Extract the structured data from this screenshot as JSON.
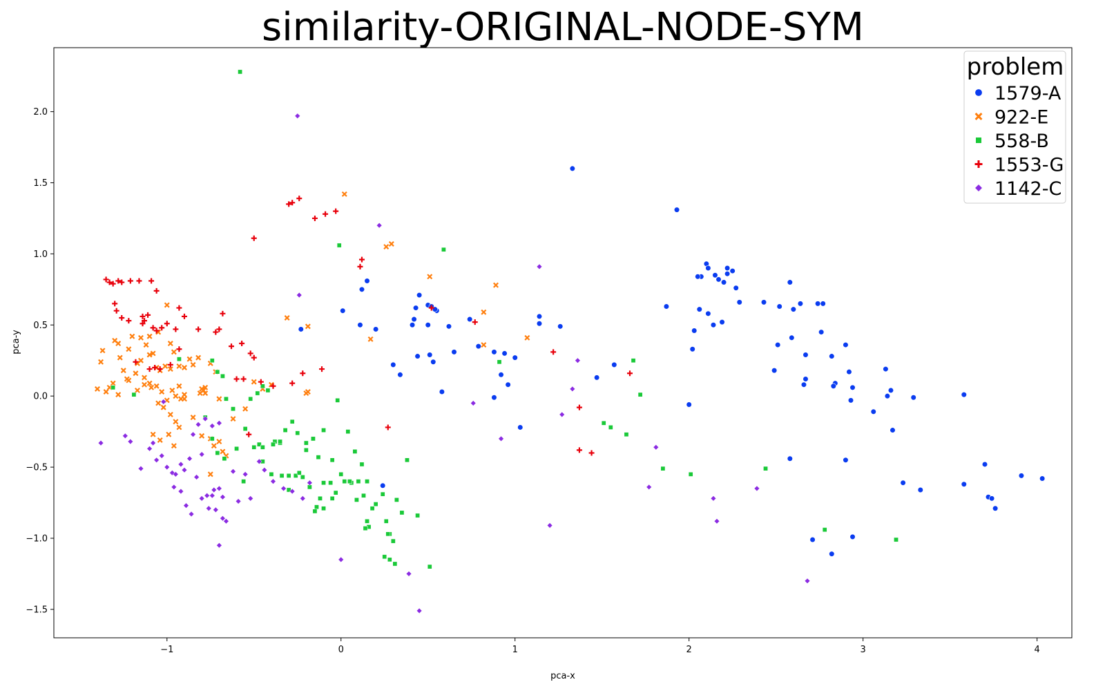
{
  "chart_data": {
    "type": "scatter",
    "title": "similarity-ORIGINAL-NODE-SYM",
    "xlabel": "pca-x",
    "ylabel": "pca-y",
    "xlim": [
      -1.65,
      4.2
    ],
    "ylim": [
      -1.7,
      2.45
    ],
    "xticks": [
      -1,
      0,
      1,
      2,
      3,
      4
    ],
    "yticks": [
      -1.5,
      -1.0,
      -0.5,
      0.0,
      0.5,
      1.0,
      1.5,
      2.0
    ],
    "xtick_labels": [
      "−1",
      "0",
      "1",
      "2",
      "3",
      "4"
    ],
    "ytick_labels": [
      "−1.5",
      "−1.0",
      "−0.5",
      "0.0",
      "0.5",
      "1.0",
      "1.5",
      "2.0"
    ],
    "grid": false,
    "legend": {
      "title": "problem",
      "placement": "top-right"
    },
    "series": [
      {
        "name": "1579-A",
        "marker": "circle",
        "color": "#0a3cf0",
        "x": [
          1.33,
          1.93,
          2.1,
          2.11,
          2.07,
          2.05,
          2.15,
          2.17,
          2.2,
          2.22,
          2.25,
          2.27,
          2.22,
          2.29,
          1.87,
          2.06,
          2.11,
          2.14,
          2.19,
          2.03,
          2.02,
          2.0,
          2.43,
          2.52,
          2.58,
          2.6,
          2.64,
          2.74,
          2.77,
          2.51,
          2.76,
          2.59,
          2.67,
          2.49,
          2.67,
          2.66,
          2.82,
          2.84,
          2.83,
          2.9,
          2.92,
          2.94,
          2.93,
          3.13,
          3.16,
          3.14,
          3.06,
          3.29,
          3.17,
          3.58,
          3.7,
          3.72,
          3.74,
          3.76,
          3.91,
          4.03,
          3.58,
          3.23,
          3.33,
          2.9,
          2.58,
          2.71,
          2.94,
          2.82,
          0.01,
          0.11,
          0.12,
          0.15,
          0.2,
          0.3,
          0.34,
          0.45,
          0.43,
          0.41,
          0.42,
          0.5,
          0.51,
          0.53,
          0.55,
          0.44,
          0.5,
          0.52,
          0.54,
          0.62,
          0.65,
          0.74,
          0.79,
          0.88,
          0.94,
          1.0,
          0.92,
          0.96,
          0.88,
          0.58,
          1.14,
          1.14,
          1.26,
          1.03,
          1.47,
          1.57,
          -0.23,
          0.24
        ],
        "y": [
          1.6,
          1.31,
          0.93,
          0.9,
          0.84,
          0.84,
          0.85,
          0.82,
          0.8,
          0.86,
          0.88,
          0.76,
          0.9,
          0.66,
          0.63,
          0.61,
          0.58,
          0.5,
          0.52,
          0.46,
          0.33,
          -0.06,
          0.66,
          0.63,
          0.8,
          0.61,
          0.65,
          0.65,
          0.65,
          0.36,
          0.45,
          0.41,
          0.29,
          0.18,
          0.12,
          0.08,
          0.28,
          0.09,
          0.07,
          0.36,
          0.17,
          0.06,
          -0.03,
          0.19,
          0.04,
          0.0,
          -0.11,
          -0.01,
          -0.24,
          0.01,
          -0.48,
          -0.71,
          -0.72,
          -0.79,
          -0.56,
          -0.58,
          -0.62,
          -0.61,
          -0.66,
          -0.45,
          -0.44,
          -1.01,
          -0.99,
          -1.11,
          0.6,
          0.5,
          0.75,
          0.81,
          0.47,
          0.22,
          0.15,
          0.71,
          0.62,
          0.5,
          0.54,
          0.64,
          0.29,
          0.24,
          0.6,
          0.28,
          0.5,
          0.63,
          0.61,
          0.49,
          0.31,
          0.54,
          0.35,
          0.31,
          0.3,
          0.27,
          0.15,
          0.08,
          -0.01,
          0.03,
          0.56,
          0.51,
          0.49,
          -0.22,
          0.13,
          0.22,
          0.47,
          -0.63
        ]
      },
      {
        "name": "922-E",
        "marker": "x",
        "color": "#ff7f0e",
        "x": [
          0.02,
          0.29,
          0.26,
          -0.31,
          -0.19,
          0.51,
          0.82,
          0.89,
          0.17,
          1.07,
          0.82,
          -1.37,
          -1.38,
          -1.3,
          -1.28,
          -1.27,
          -1.22,
          -1.2,
          -1.17,
          -1.15,
          -1.12,
          -1.1,
          -1.08,
          -1.05,
          -1.0,
          -0.98,
          -0.96,
          -0.93,
          -0.9,
          -0.87,
          -0.85,
          -0.82,
          -0.8,
          -0.78,
          -0.75,
          -0.72,
          -0.7,
          -1.33,
          -1.31,
          -1.25,
          -1.18,
          -1.13,
          -1.1,
          -1.06,
          -1.03,
          -1.0,
          -0.97,
          -0.95,
          -0.92,
          -0.9,
          -1.22,
          -1.15,
          -1.1,
          -1.06,
          -1.04,
          -1.01,
          -0.98,
          -0.93,
          -0.9,
          -1.4,
          -1.35,
          -1.28,
          -1.23,
          -1.17,
          -1.13,
          -1.09,
          -1.05,
          -1.02,
          -0.98,
          -0.95,
          -1.08,
          -1.04,
          -0.99,
          -0.96,
          -0.93,
          -0.85,
          -0.8,
          -0.75,
          -0.73,
          -0.7,
          -0.68,
          -0.66,
          -0.62,
          -0.55,
          -0.5,
          -0.45,
          -0.4,
          -0.81,
          -0.79,
          -0.78,
          -0.75,
          -0.2,
          -0.19
        ],
        "y": [
          1.42,
          1.07,
          1.05,
          0.55,
          0.49,
          0.84,
          0.59,
          0.78,
          0.4,
          0.41,
          0.36,
          0.32,
          0.24,
          0.39,
          0.37,
          0.27,
          0.33,
          0.42,
          0.23,
          0.41,
          0.36,
          0.42,
          0.3,
          0.45,
          0.64,
          0.37,
          0.31,
          0.21,
          0.2,
          0.26,
          0.22,
          0.27,
          0.05,
          0.02,
          0.23,
          0.17,
          -0.02,
          0.06,
          0.09,
          0.18,
          0.16,
          0.13,
          0.09,
          0.07,
          0.03,
          -0.03,
          0.04,
          0.0,
          -0.02,
          0.01,
          0.11,
          0.25,
          0.29,
          0.2,
          0.18,
          0.21,
          0.19,
          0.07,
          -0.02,
          0.05,
          0.03,
          0.01,
          0.12,
          0.04,
          0.08,
          0.06,
          -0.05,
          -0.08,
          -0.13,
          -0.18,
          -0.27,
          -0.31,
          -0.27,
          -0.35,
          -0.22,
          -0.15,
          -0.28,
          -0.3,
          -0.35,
          -0.32,
          -0.39,
          -0.42,
          -0.16,
          -0.09,
          0.1,
          0.05,
          0.08,
          0.02,
          0.04,
          0.06,
          -0.55,
          0.02,
          0.03
        ]
      },
      {
        "name": "558-B",
        "marker": "square",
        "color": "#1ac938",
        "x": [
          -0.58,
          -0.01,
          0.59,
          0.91,
          1.68,
          1.72,
          1.51,
          1.55,
          1.64,
          1.85,
          2.01,
          2.44,
          2.78,
          3.19,
          0.44,
          0.51,
          -1.31,
          -1.19,
          -0.93,
          -0.74,
          -0.71,
          -0.68,
          -0.66,
          -0.62,
          -0.55,
          -0.52,
          -0.48,
          -0.45,
          -0.42,
          -0.38,
          -0.35,
          -0.32,
          -0.28,
          -0.25,
          -0.2,
          -0.16,
          -0.13,
          -0.1,
          -0.05,
          -0.02,
          0.04,
          0.08,
          0.12,
          0.15,
          -0.78,
          -0.74,
          -0.71,
          -0.67,
          -0.6,
          -0.56,
          -0.5,
          -0.45,
          -0.4,
          -0.34,
          -0.3,
          -0.26,
          -0.22,
          -0.18,
          -0.14,
          -0.12,
          -0.1,
          -0.06,
          -0.03,
          0.02,
          0.06,
          0.09,
          0.13,
          0.16,
          0.2,
          0.24,
          0.26,
          0.28,
          0.3,
          0.32,
          0.35,
          0.38,
          0.14,
          0.15,
          0.27,
          0.28,
          0.25,
          0.31,
          -0.47,
          -0.45,
          -0.39,
          -0.35,
          -0.3,
          -0.24,
          -0.2,
          -0.15,
          -0.1,
          -0.05,
          0.0,
          0.05,
          0.1,
          0.18
        ],
        "y": [
          2.28,
          1.06,
          1.03,
          0.24,
          0.25,
          0.01,
          -0.19,
          -0.22,
          -0.27,
          -0.51,
          -0.55,
          -0.51,
          -0.94,
          -1.01,
          -0.84,
          -1.2,
          0.06,
          0.01,
          0.26,
          0.25,
          0.17,
          0.14,
          -0.02,
          -0.09,
          -0.23,
          -0.02,
          0.02,
          0.07,
          0.04,
          -0.32,
          -0.33,
          -0.24,
          -0.18,
          -0.26,
          -0.33,
          -0.3,
          -0.43,
          -0.24,
          -0.45,
          -0.03,
          -0.25,
          -0.39,
          -0.48,
          -0.6,
          -0.15,
          -0.3,
          -0.4,
          -0.44,
          -0.37,
          -0.6,
          -0.36,
          -0.46,
          -0.55,
          -0.56,
          -0.66,
          -0.56,
          -0.57,
          -0.64,
          -0.78,
          -0.72,
          -0.61,
          -0.61,
          -0.68,
          -0.6,
          -0.61,
          -0.73,
          -0.7,
          -0.92,
          -0.76,
          -0.69,
          -0.88,
          -0.97,
          -1.02,
          -0.73,
          -0.82,
          -0.45,
          -0.93,
          -0.88,
          -0.97,
          -1.15,
          -1.13,
          -1.18,
          -0.34,
          -0.36,
          -0.34,
          -0.32,
          -0.56,
          -0.54,
          -0.38,
          -0.81,
          -0.79,
          -0.72,
          -0.55,
          -0.6,
          -0.6,
          -0.79
        ]
      },
      {
        "name": "1553-G",
        "marker": "plus",
        "color": "#e8000b",
        "x": [
          -0.28,
          -0.24,
          -0.3,
          -0.15,
          -0.09,
          -0.03,
          -0.5,
          0.12,
          0.11,
          0.52,
          0.77,
          1.22,
          1.37,
          1.44,
          1.37,
          1.66,
          0.27,
          -1.35,
          -1.33,
          -1.31,
          -1.28,
          -1.26,
          -1.21,
          -1.16,
          -1.14,
          -1.3,
          -1.29,
          -1.26,
          -1.22,
          -1.18,
          -1.13,
          -1.11,
          -1.08,
          -1.06,
          -1.03,
          -1.0,
          -0.95,
          -0.93,
          -0.9,
          -0.82,
          -0.72,
          -0.7,
          -0.68,
          -0.63,
          -0.57,
          -0.52,
          -0.5,
          -0.46,
          -0.39,
          -0.28,
          -0.22,
          -0.11,
          -1.14,
          -1.1,
          -1.07,
          -1.04,
          -0.98,
          -0.93,
          -1.06,
          -1.09,
          -0.53,
          -0.6,
          -0.56
        ],
        "y": [
          1.36,
          1.39,
          1.35,
          1.25,
          1.28,
          1.3,
          1.11,
          0.96,
          0.91,
          0.62,
          0.52,
          0.31,
          -0.08,
          -0.4,
          -0.38,
          0.16,
          -0.22,
          0.82,
          0.8,
          0.79,
          0.81,
          0.8,
          0.81,
          0.81,
          0.56,
          0.65,
          0.6,
          0.55,
          0.53,
          0.24,
          0.53,
          0.57,
          0.48,
          0.46,
          0.48,
          0.51,
          0.47,
          0.62,
          0.56,
          0.47,
          0.45,
          0.47,
          0.58,
          0.35,
          0.37,
          0.3,
          0.27,
          0.1,
          0.07,
          0.09,
          0.16,
          0.19,
          0.51,
          0.19,
          0.2,
          0.19,
          0.22,
          0.33,
          0.74,
          0.81,
          -0.27,
          0.12,
          0.12
        ]
      },
      {
        "name": "1142-C",
        "marker": "diamond",
        "color": "#8b2be2",
        "x": [
          -0.25,
          0.22,
          -0.24,
          1.14,
          1.36,
          1.33,
          1.27,
          0.92,
          1.2,
          1.77,
          1.81,
          2.14,
          2.16,
          2.39,
          2.68,
          0.0,
          0.39,
          0.45,
          0.76,
          -1.38,
          -1.24,
          -1.21,
          -1.15,
          -1.1,
          -1.06,
          -1.03,
          -1.0,
          -0.97,
          -0.95,
          -0.92,
          -0.9,
          -0.87,
          -0.83,
          -0.8,
          -0.77,
          -0.73,
          -0.7,
          -0.68,
          -0.66,
          -0.62,
          -0.59,
          -0.55,
          -0.52,
          -0.47,
          -0.44,
          -0.39,
          -0.33,
          -0.28,
          -0.22,
          -0.18,
          -0.85,
          -0.82,
          -0.78,
          -0.74,
          -0.7,
          -1.08,
          -1.02,
          -0.96,
          -0.92,
          -0.89,
          -0.86,
          -0.8,
          -0.76,
          -0.72,
          -0.68,
          -0.7,
          -0.74
        ],
        "y": [
          1.97,
          1.2,
          0.71,
          0.91,
          0.25,
          0.05,
          -0.13,
          -0.3,
          -0.91,
          -0.64,
          -0.36,
          -0.72,
          -0.88,
          -0.65,
          -1.3,
          -1.15,
          -1.25,
          -1.51,
          -0.05,
          -0.33,
          -0.28,
          -0.32,
          -0.51,
          -0.37,
          -0.45,
          -0.42,
          -0.5,
          -0.54,
          -0.55,
          -0.48,
          -0.52,
          -0.44,
          -0.57,
          -0.41,
          -0.7,
          -0.66,
          -0.65,
          -0.71,
          -0.88,
          -0.53,
          -0.74,
          -0.55,
          -0.72,
          -0.46,
          -0.52,
          -0.6,
          -0.65,
          -0.67,
          -0.72,
          -0.61,
          -0.27,
          -0.2,
          -0.16,
          -0.21,
          -0.19,
          -0.33,
          -0.04,
          -0.64,
          -0.67,
          -0.77,
          -0.83,
          -0.72,
          -0.79,
          -0.8,
          -0.86,
          -1.05,
          -0.7
        ]
      }
    ]
  }
}
